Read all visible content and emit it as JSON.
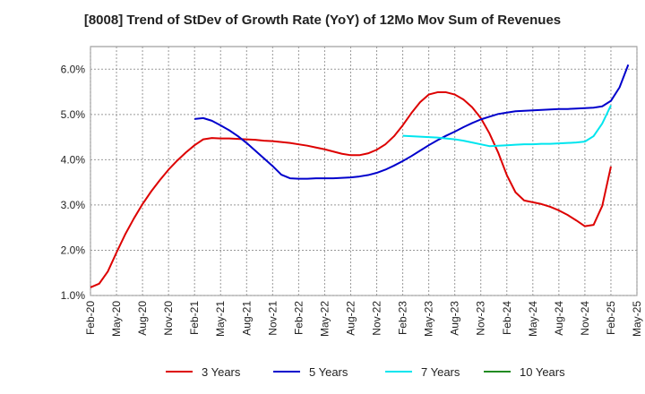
{
  "chart_data": {
    "type": "line",
    "title": "[8008]  Trend of StDev of Growth Rate (YoY) of 12Mo Mov Sum of Revenues",
    "xlabel": "",
    "ylabel": "",
    "ylim": [
      1.0,
      6.5
    ],
    "yticks": [
      "1.0%",
      "2.0%",
      "3.0%",
      "4.0%",
      "5.0%",
      "6.0%"
    ],
    "ytick_values": [
      1.0,
      2.0,
      3.0,
      4.0,
      5.0,
      6.0
    ],
    "xticks": [
      "Feb-20",
      "May-20",
      "Aug-20",
      "Nov-20",
      "Feb-21",
      "May-21",
      "Aug-21",
      "Nov-21",
      "Feb-22",
      "May-22",
      "Aug-22",
      "Nov-22",
      "Feb-23",
      "May-23",
      "Aug-23",
      "Nov-23",
      "Feb-24",
      "May-24",
      "Aug-24",
      "Nov-24",
      "Feb-25",
      "May-25"
    ],
    "grid": true,
    "legend_position": "bottom",
    "series": [
      {
        "name": "3 Years",
        "color": "#dd0000",
        "start_index": 0,
        "values": [
          1.18,
          1.26,
          1.53,
          1.95,
          2.35,
          2.7,
          3.02,
          3.3,
          3.55,
          3.78,
          3.98,
          4.16,
          4.32,
          4.45,
          4.48,
          4.47,
          4.47,
          4.46,
          4.45,
          4.44,
          4.42,
          4.41,
          4.39,
          4.37,
          4.34,
          4.31,
          4.27,
          4.23,
          4.18,
          4.13,
          4.1,
          4.1,
          4.14,
          4.22,
          4.34,
          4.52,
          4.76,
          5.03,
          5.27,
          5.44,
          5.49,
          5.49,
          5.44,
          5.33,
          5.16,
          4.92,
          4.58,
          4.16,
          3.66,
          3.28,
          3.1,
          3.06,
          3.02,
          2.96,
          2.88,
          2.78,
          2.66,
          2.53,
          2.56,
          2.98,
          3.85
        ]
      },
      {
        "name": "5 Years",
        "color": "#0000cc",
        "start_index": 12,
        "values": [
          4.9,
          4.92,
          4.86,
          4.76,
          4.65,
          4.52,
          4.37,
          4.2,
          4.03,
          3.86,
          3.67,
          3.59,
          3.58,
          3.58,
          3.59,
          3.59,
          3.59,
          3.6,
          3.61,
          3.63,
          3.66,
          3.71,
          3.78,
          3.87,
          3.97,
          4.08,
          4.2,
          4.32,
          4.43,
          4.53,
          4.62,
          4.72,
          4.81,
          4.89,
          4.95,
          5.01,
          5.04,
          5.07,
          5.08,
          5.09,
          5.1,
          5.11,
          5.12,
          5.12,
          5.13,
          5.14,
          5.15,
          5.18,
          5.3,
          5.6,
          6.1
        ]
      },
      {
        "name": "7 Years",
        "color": "#00e5ee",
        "start_index": 36,
        "values": [
          4.53,
          4.52,
          4.51,
          4.5,
          4.49,
          4.47,
          4.45,
          4.42,
          4.38,
          4.34,
          4.3,
          4.31,
          4.32,
          4.33,
          4.34,
          4.34,
          4.35,
          4.35,
          4.36,
          4.37,
          4.38,
          4.4,
          4.52,
          4.8,
          5.2
        ]
      },
      {
        "name": "10 Years",
        "color": "#228b22",
        "start_index": 0,
        "values": []
      }
    ]
  }
}
